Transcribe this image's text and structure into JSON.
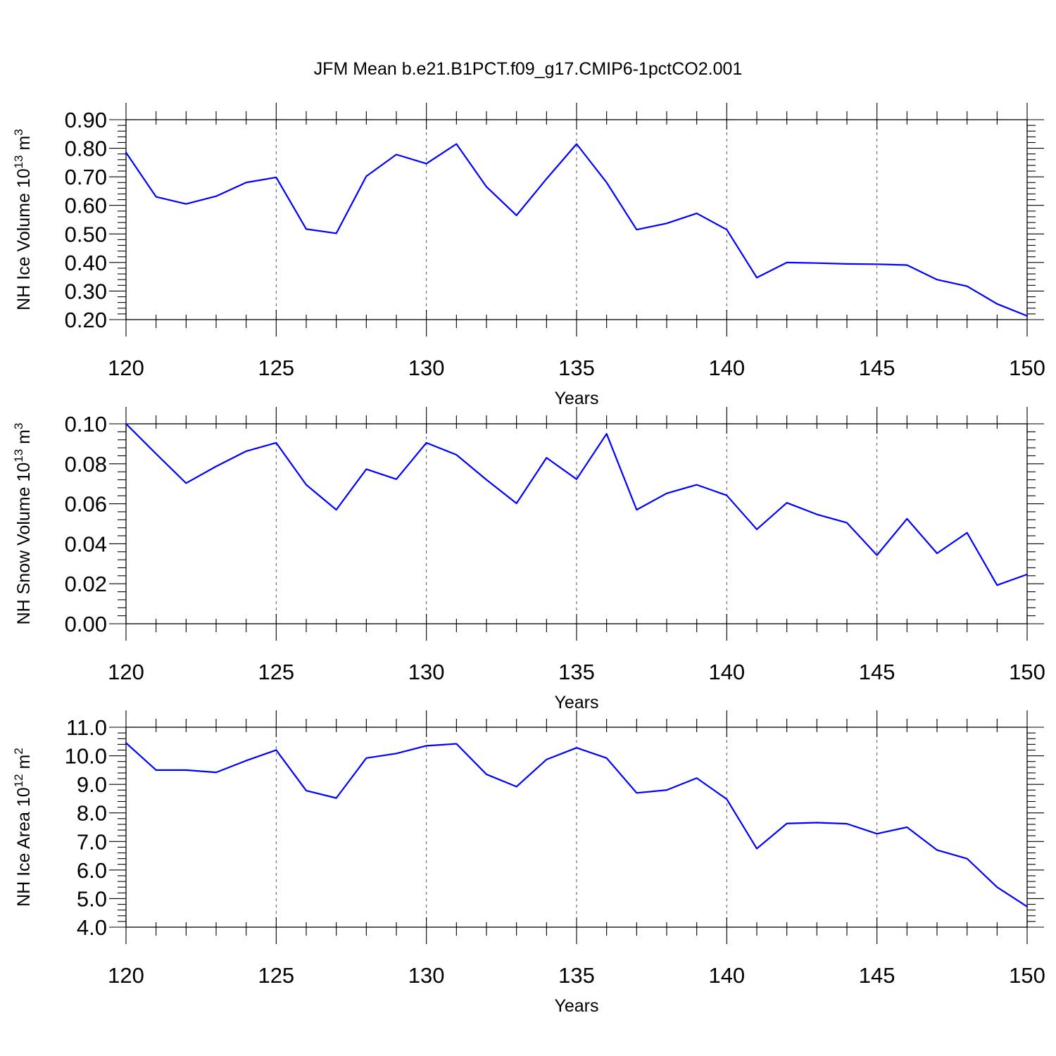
{
  "title": "JFM Mean b.e21.B1PCT.f09_g17.CMIP6-1pctCO2.001",
  "colors": {
    "series": "#0000ff",
    "axis": "#000000",
    "grid": "#555555",
    "background": "#ffffff"
  },
  "chart_data": [
    {
      "type": "line",
      "title": "JFM Mean b.e21.B1PCT.f09_g17.CMIP6-1pctCO2.001",
      "xlabel": "Years",
      "ylabel_main": "NH Ice Volume 10",
      "ylabel_exp": "13",
      "ylabel_unit": " m",
      "ylabel_unit_exp": "3",
      "xlim": [
        120,
        150
      ],
      "ylim": [
        0.2,
        0.9
      ],
      "x_ticks": [
        120,
        125,
        130,
        135,
        140,
        145,
        150
      ],
      "x_tick_labels": [
        "120",
        "125",
        "130",
        "135",
        "140",
        "145",
        "150"
      ],
      "y_ticks": [
        0.2,
        0.3,
        0.4,
        0.5,
        0.6,
        0.7,
        0.8,
        0.9
      ],
      "y_tick_labels": [
        "0.20",
        "0.30",
        "0.40",
        "0.50",
        "0.60",
        "0.70",
        "0.80",
        "0.90"
      ],
      "grid": "vertical dashed at major x ticks",
      "series": [
        {
          "color": "#0000ff",
          "x": [
            120,
            121,
            122,
            123,
            124,
            125,
            126,
            127,
            128,
            129,
            130,
            131,
            132,
            133,
            134,
            135,
            136,
            137,
            138,
            139,
            140,
            141,
            142,
            143,
            144,
            145,
            146,
            147,
            148,
            149,
            150
          ],
          "y": [
            0.785,
            0.63,
            0.605,
            0.632,
            0.68,
            0.698,
            0.517,
            0.502,
            0.702,
            0.778,
            0.746,
            0.815,
            0.665,
            0.565,
            0.693,
            0.815,
            0.68,
            0.515,
            0.537,
            0.572,
            0.515,
            0.347,
            0.4,
            0.398,
            0.395,
            0.394,
            0.391,
            0.34,
            0.317,
            0.255,
            0.213
          ]
        }
      ]
    },
    {
      "type": "line",
      "xlabel": "Years",
      "ylabel_main": "NH Snow Volume 10",
      "ylabel_exp": "13",
      "ylabel_unit": " m",
      "ylabel_unit_exp": "3",
      "xlim": [
        120,
        150
      ],
      "ylim": [
        0.0,
        0.1
      ],
      "x_ticks": [
        120,
        125,
        130,
        135,
        140,
        145,
        150
      ],
      "x_tick_labels": [
        "120",
        "125",
        "130",
        "135",
        "140",
        "145",
        "150"
      ],
      "y_ticks": [
        0.0,
        0.02,
        0.04,
        0.06,
        0.08,
        0.1
      ],
      "y_tick_labels": [
        "0.00",
        "0.02",
        "0.04",
        "0.06",
        "0.08",
        "0.10"
      ],
      "grid": "vertical dashed at major x ticks",
      "series": [
        {
          "color": "#0000ff",
          "x": [
            120,
            121,
            122,
            123,
            124,
            125,
            126,
            127,
            128,
            129,
            130,
            131,
            132,
            133,
            134,
            135,
            136,
            137,
            138,
            139,
            140,
            141,
            142,
            143,
            144,
            145,
            146,
            147,
            148,
            149,
            150
          ],
          "y": [
            0.1,
            0.085,
            0.0703,
            0.0787,
            0.0863,
            0.0905,
            0.0695,
            0.057,
            0.0773,
            0.0723,
            0.0905,
            0.0845,
            0.072,
            0.0602,
            0.083,
            0.0723,
            0.095,
            0.057,
            0.0652,
            0.0695,
            0.0642,
            0.0472,
            0.0605,
            0.0547,
            0.0505,
            0.0343,
            0.0525,
            0.0352,
            0.0455,
            0.0193,
            0.0247
          ]
        }
      ]
    },
    {
      "type": "line",
      "xlabel": "Years",
      "ylabel_main": "NH Ice Area 10",
      "ylabel_exp": "12",
      "ylabel_unit": " m",
      "ylabel_unit_exp": "2",
      "xlim": [
        120,
        150
      ],
      "ylim": [
        4.0,
        11.0
      ],
      "x_ticks": [
        120,
        125,
        130,
        135,
        140,
        145,
        150
      ],
      "x_tick_labels": [
        "120",
        "125",
        "130",
        "135",
        "140",
        "145",
        "150"
      ],
      "y_ticks": [
        4.0,
        5.0,
        6.0,
        7.0,
        8.0,
        9.0,
        10.0,
        11.0
      ],
      "y_tick_labels": [
        "4.0",
        "5.0",
        "6.0",
        "7.0",
        "8.0",
        "9.0",
        "10.0",
        "11.0"
      ],
      "grid": "vertical dashed at major x ticks",
      "series": [
        {
          "color": "#0000ff",
          "x": [
            120,
            121,
            122,
            123,
            124,
            125,
            126,
            127,
            128,
            129,
            130,
            131,
            132,
            133,
            134,
            135,
            136,
            137,
            138,
            139,
            140,
            141,
            142,
            143,
            144,
            145,
            146,
            147,
            148,
            149,
            150
          ],
          "y": [
            10.45,
            9.5,
            9.5,
            9.42,
            9.83,
            10.2,
            8.78,
            8.52,
            9.92,
            10.08,
            10.35,
            10.42,
            9.35,
            8.92,
            9.87,
            10.28,
            9.92,
            8.7,
            8.8,
            9.22,
            8.48,
            6.75,
            7.63,
            7.66,
            7.62,
            7.27,
            7.5,
            6.7,
            6.4,
            5.4,
            4.72
          ]
        }
      ]
    }
  ]
}
